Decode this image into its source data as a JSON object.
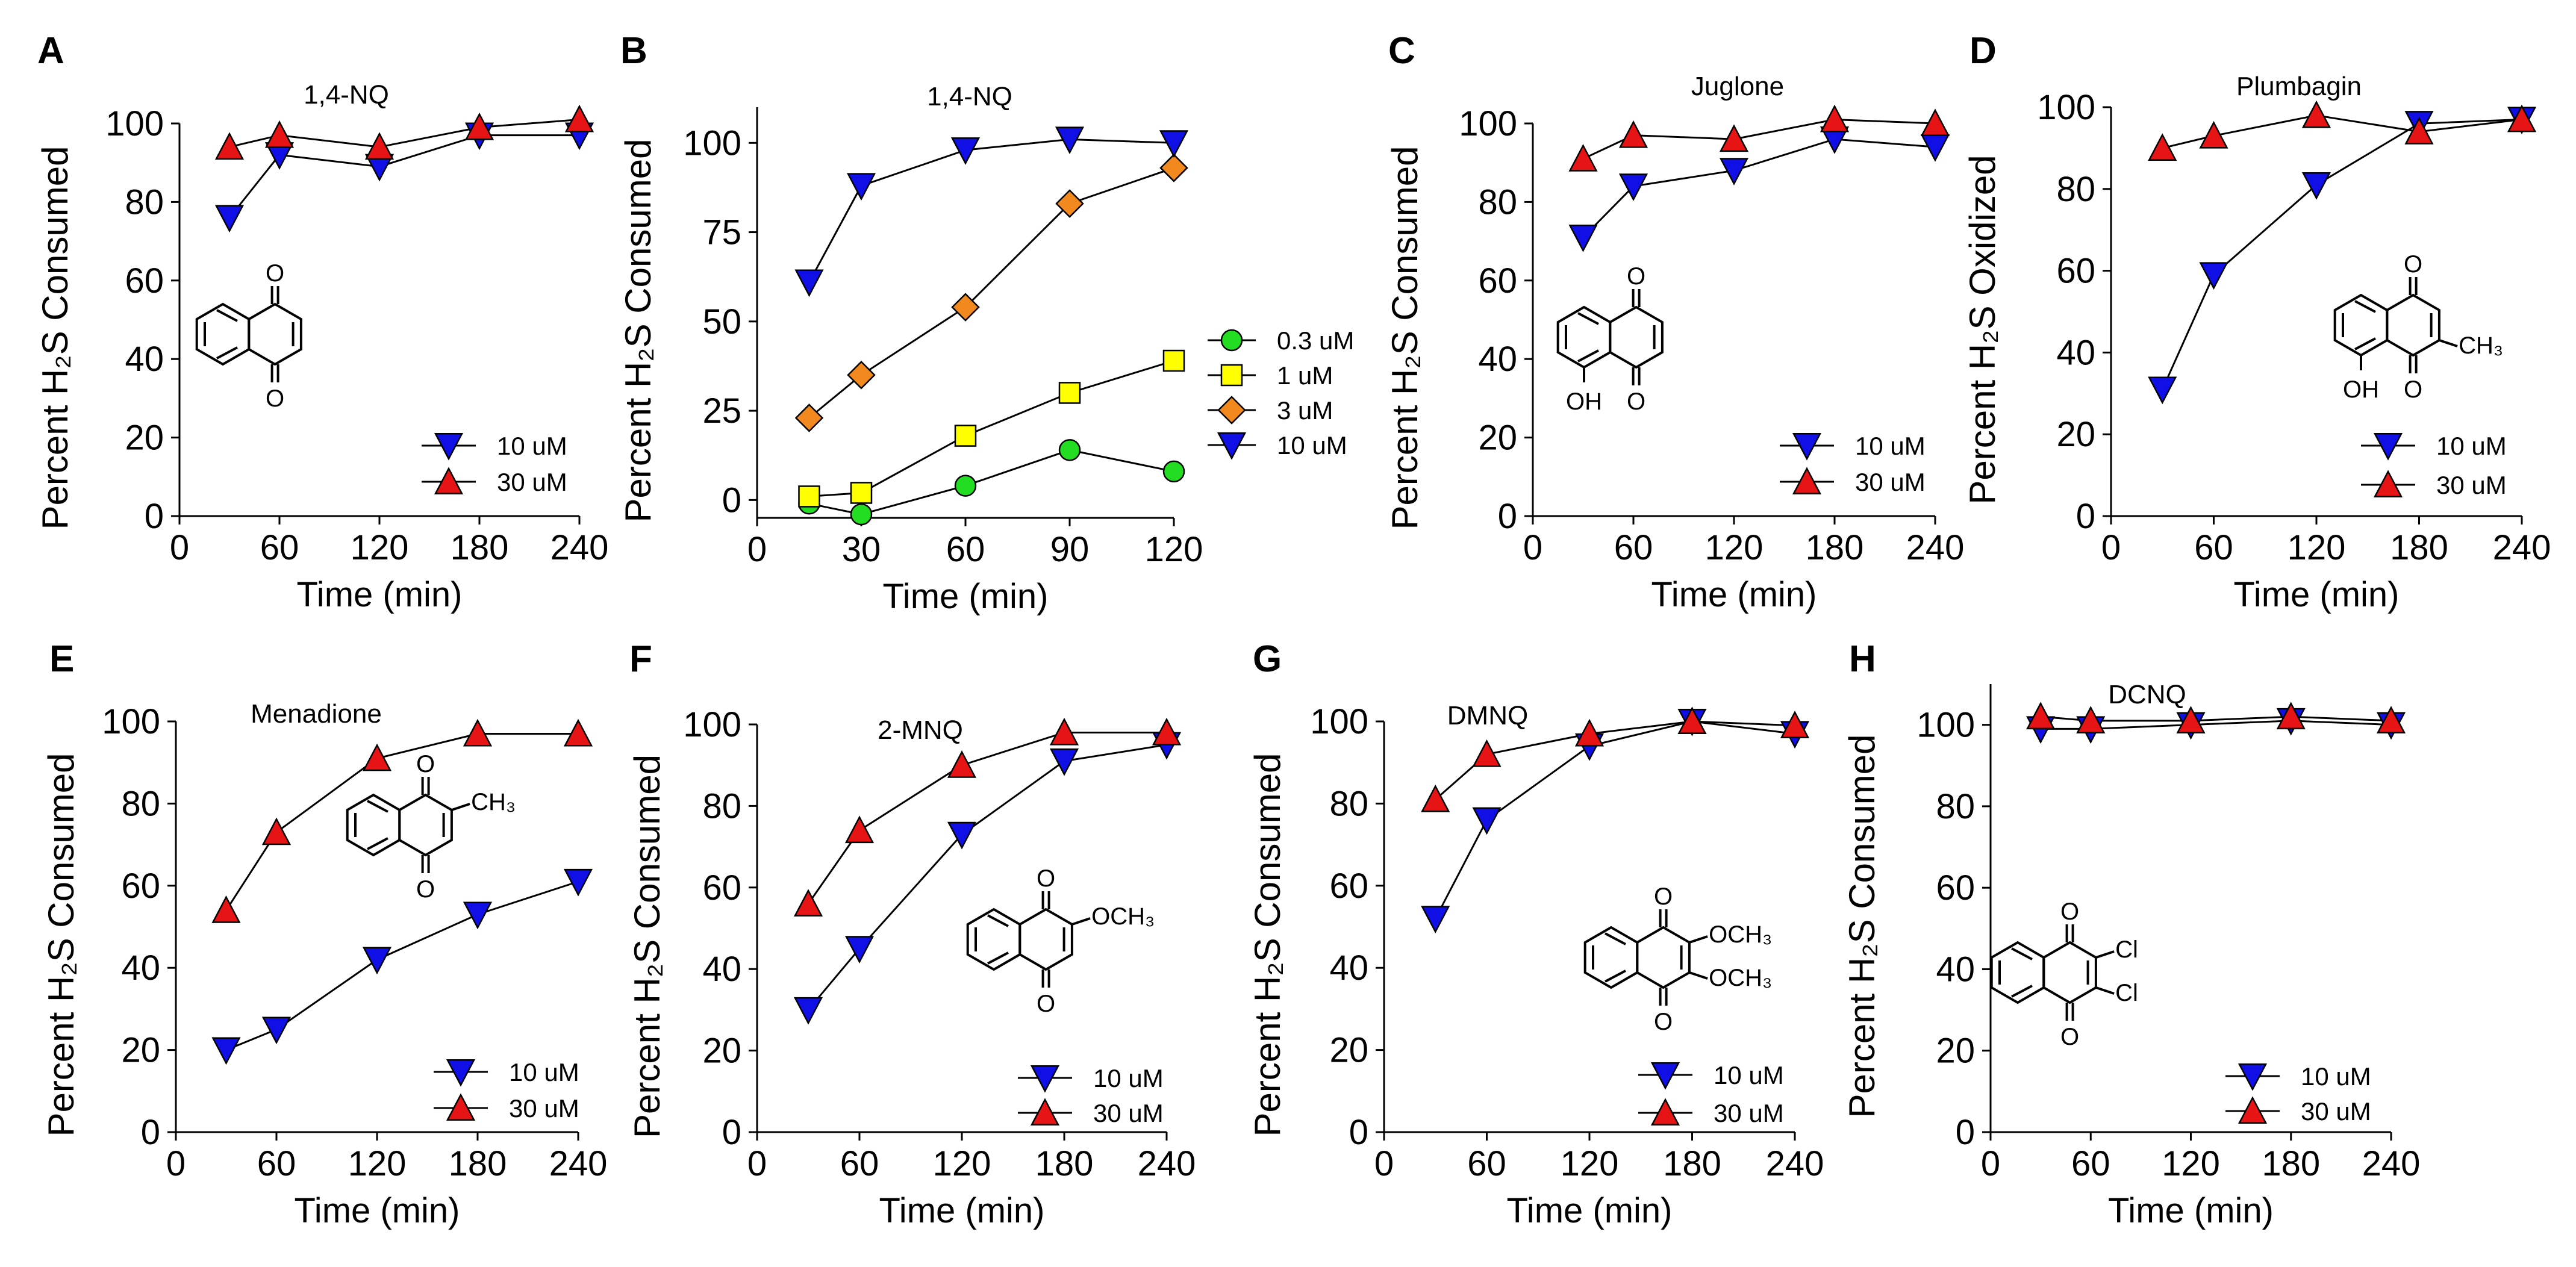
{
  "figure": {
    "description_free": true
  },
  "colors": {
    "blue": "#1010e6",
    "red": "#e61414",
    "green": "#22dd22",
    "yellow": "#ffff00",
    "orange": "#f2891f",
    "axis": "#000000"
  },
  "chart_data": [
    {
      "panel": "A",
      "type": "line",
      "title": "1,4-NQ",
      "xlabel": "Time (min)",
      "ylabel": "Percent  H₂S Consumed",
      "xlim": [
        0,
        240
      ],
      "ylim": [
        0,
        100
      ],
      "xticks": [
        0,
        60,
        120,
        180,
        240
      ],
      "yticks": [
        0,
        20,
        40,
        60,
        80,
        100
      ],
      "structure": {
        "name": "1,4-naphthoquinone",
        "labels": [
          "O",
          "O"
        ]
      },
      "series": [
        {
          "name": "10 uM",
          "marker": "triangle-down",
          "color": "#1010e6",
          "x": [
            30,
            60,
            120,
            180,
            240
          ],
          "values": [
            76,
            92,
            89,
            97,
            97
          ]
        },
        {
          "name": "30 uM",
          "marker": "triangle-up",
          "color": "#e61414",
          "x": [
            30,
            60,
            120,
            180,
            240
          ],
          "values": [
            94,
            97,
            94,
            99,
            101
          ]
        }
      ]
    },
    {
      "panel": "B",
      "type": "line",
      "title": "1,4-NQ",
      "xlabel": "Time (min)",
      "ylabel": "Percent H₂S Consumed",
      "xlim": [
        0,
        120
      ],
      "ylim": [
        -5,
        110
      ],
      "xticks": [
        0,
        30,
        60,
        90,
        120
      ],
      "yticks": [
        0,
        25,
        50,
        75,
        100
      ],
      "series": [
        {
          "name": "0.3 uM",
          "marker": "circle",
          "color": "#22dd22",
          "x": [
            15,
            30,
            60,
            90,
            120
          ],
          "values": [
            -1,
            -4,
            4,
            14,
            8
          ]
        },
        {
          "name": "1 uM",
          "marker": "square",
          "color": "#ffff00",
          "x": [
            15,
            30,
            60,
            90,
            120
          ],
          "values": [
            1,
            2,
            18,
            30,
            39
          ]
        },
        {
          "name": "3 uM",
          "marker": "diamond",
          "color": "#f2891f",
          "x": [
            15,
            30,
            60,
            90,
            120
          ],
          "values": [
            23,
            35,
            54,
            83,
            93
          ]
        },
        {
          "name": "10 uM",
          "marker": "triangle-down",
          "color": "#1010e6",
          "x": [
            15,
            30,
            60,
            90,
            120
          ],
          "values": [
            61,
            88,
            98,
            101,
            100
          ]
        }
      ]
    },
    {
      "panel": "C",
      "type": "line",
      "title": "Juglone",
      "xlabel": "Time (min)",
      "ylabel": "Percent  H₂S Consumed",
      "xlim": [
        0,
        240
      ],
      "ylim": [
        0,
        100
      ],
      "xticks": [
        0,
        60,
        120,
        180,
        240
      ],
      "yticks": [
        0,
        20,
        40,
        60,
        80,
        100
      ],
      "structure": {
        "name": "juglone",
        "labels": [
          "O",
          "O",
          "OH"
        ]
      },
      "series": [
        {
          "name": "10 uM",
          "marker": "triangle-down",
          "color": "#1010e6",
          "x": [
            30,
            60,
            120,
            180,
            240
          ],
          "values": [
            71,
            84,
            88,
            96,
            94
          ]
        },
        {
          "name": "30 uM",
          "marker": "triangle-up",
          "color": "#e61414",
          "x": [
            30,
            60,
            120,
            180,
            240
          ],
          "values": [
            91,
            97,
            96,
            101,
            100
          ]
        }
      ]
    },
    {
      "panel": "D",
      "type": "line",
      "title": "Plumbagin",
      "xlabel": "Time (min)",
      "ylabel": "Percent H₂S Oxidized",
      "xlim": [
        0,
        240
      ],
      "ylim": [
        0,
        100
      ],
      "xticks": [
        0,
        60,
        120,
        180,
        240
      ],
      "yticks": [
        0,
        20,
        40,
        60,
        80,
        100
      ],
      "structure": {
        "name": "plumbagin",
        "labels": [
          "O",
          "O",
          "OH",
          "CH₃"
        ]
      },
      "series": [
        {
          "name": "10 uM",
          "marker": "triangle-down",
          "color": "#1010e6",
          "x": [
            30,
            60,
            120,
            180,
            240
          ],
          "values": [
            31,
            59,
            81,
            96,
            97
          ]
        },
        {
          "name": "30 uM",
          "marker": "triangle-up",
          "color": "#e61414",
          "x": [
            30,
            60,
            120,
            180,
            240
          ],
          "values": [
            90,
            93,
            98,
            94,
            97
          ]
        }
      ]
    },
    {
      "panel": "E",
      "type": "line",
      "title": "Menadione",
      "xlabel": "Time (min)",
      "ylabel": "Percent H₂S Consumed",
      "xlim": [
        0,
        240
      ],
      "ylim": [
        0,
        100
      ],
      "xticks": [
        0,
        60,
        120,
        180,
        240
      ],
      "yticks": [
        0,
        20,
        40,
        60,
        80,
        100
      ],
      "structure": {
        "name": "menadione",
        "labels": [
          "O",
          "O",
          "CH₃"
        ]
      },
      "series": [
        {
          "name": "10 uM",
          "marker": "triangle-down",
          "color": "#1010e6",
          "x": [
            30,
            60,
            120,
            180,
            240
          ],
          "values": [
            20,
            25,
            42,
            53,
            61
          ]
        },
        {
          "name": "30 uM",
          "marker": "triangle-up",
          "color": "#e61414",
          "x": [
            30,
            60,
            120,
            180,
            240
          ],
          "values": [
            54,
            73,
            91,
            97,
            97
          ]
        }
      ]
    },
    {
      "panel": "F",
      "type": "line",
      "title": "2-MNQ",
      "xlabel": "Time (min)",
      "ylabel": "Percent H₂S Consumed",
      "xlim": [
        0,
        240
      ],
      "ylim": [
        0,
        100
      ],
      "xticks": [
        0,
        60,
        120,
        180,
        240
      ],
      "yticks": [
        0,
        20,
        40,
        60,
        80,
        100
      ],
      "structure": {
        "name": "2-methoxy-1,4-naphthoquinone",
        "labels": [
          "O",
          "O",
          "OCH₃"
        ]
      },
      "series": [
        {
          "name": "10 uM",
          "marker": "triangle-down",
          "color": "#1010e6",
          "x": [
            30,
            60,
            120,
            180,
            240
          ],
          "values": [
            30,
            45,
            73,
            91,
            95
          ]
        },
        {
          "name": "30 uM",
          "marker": "triangle-up",
          "color": "#e61414",
          "x": [
            30,
            60,
            120,
            180,
            240
          ],
          "values": [
            56,
            74,
            90,
            98,
            98
          ]
        }
      ]
    },
    {
      "panel": "G",
      "type": "line",
      "title": "DMNQ",
      "xlabel": "Time (min)",
      "ylabel": "Percent H₂S Consumed",
      "xlim": [
        0,
        240
      ],
      "ylim": [
        0,
        100
      ],
      "xticks": [
        0,
        60,
        120,
        180,
        240
      ],
      "yticks": [
        0,
        20,
        40,
        60,
        80,
        100
      ],
      "structure": {
        "name": "2,3-dimethoxy-1,4-naphthoquinone",
        "labels": [
          "O",
          "O",
          "OCH₃",
          "OCH₃"
        ]
      },
      "series": [
        {
          "name": "10 uM",
          "marker": "triangle-down",
          "color": "#1010e6",
          "x": [
            30,
            60,
            120,
            180,
            240
          ],
          "values": [
            52,
            76,
            94,
            100,
            97
          ]
        },
        {
          "name": "30 uM",
          "marker": "triangle-up",
          "color": "#e61414",
          "x": [
            30,
            60,
            120,
            180,
            240
          ],
          "values": [
            81,
            92,
            97,
            100,
            99
          ]
        }
      ]
    },
    {
      "panel": "H",
      "type": "line",
      "title": "DCNQ",
      "xlabel": "Time (min)",
      "ylabel": "Percent H₂S Consumed",
      "xlim": [
        0,
        240
      ],
      "ylim": [
        0,
        110
      ],
      "xticks": [
        0,
        60,
        120,
        180,
        240
      ],
      "yticks": [
        0,
        20,
        40,
        60,
        80,
        100
      ],
      "structure": {
        "name": "2,3-dichloro-1,4-naphthoquinone",
        "labels": [
          "O",
          "O",
          "Cl",
          "Cl"
        ]
      },
      "series": [
        {
          "name": "10 uM",
          "marker": "triangle-down",
          "color": "#1010e6",
          "x": [
            30,
            60,
            120,
            180,
            240
          ],
          "values": [
            99,
            99,
            100,
            101,
            100
          ]
        },
        {
          "name": "30 uM",
          "marker": "triangle-up",
          "color": "#e61414",
          "x": [
            30,
            60,
            120,
            180,
            240
          ],
          "values": [
            102,
            101,
            101,
            102,
            101
          ]
        }
      ]
    }
  ]
}
